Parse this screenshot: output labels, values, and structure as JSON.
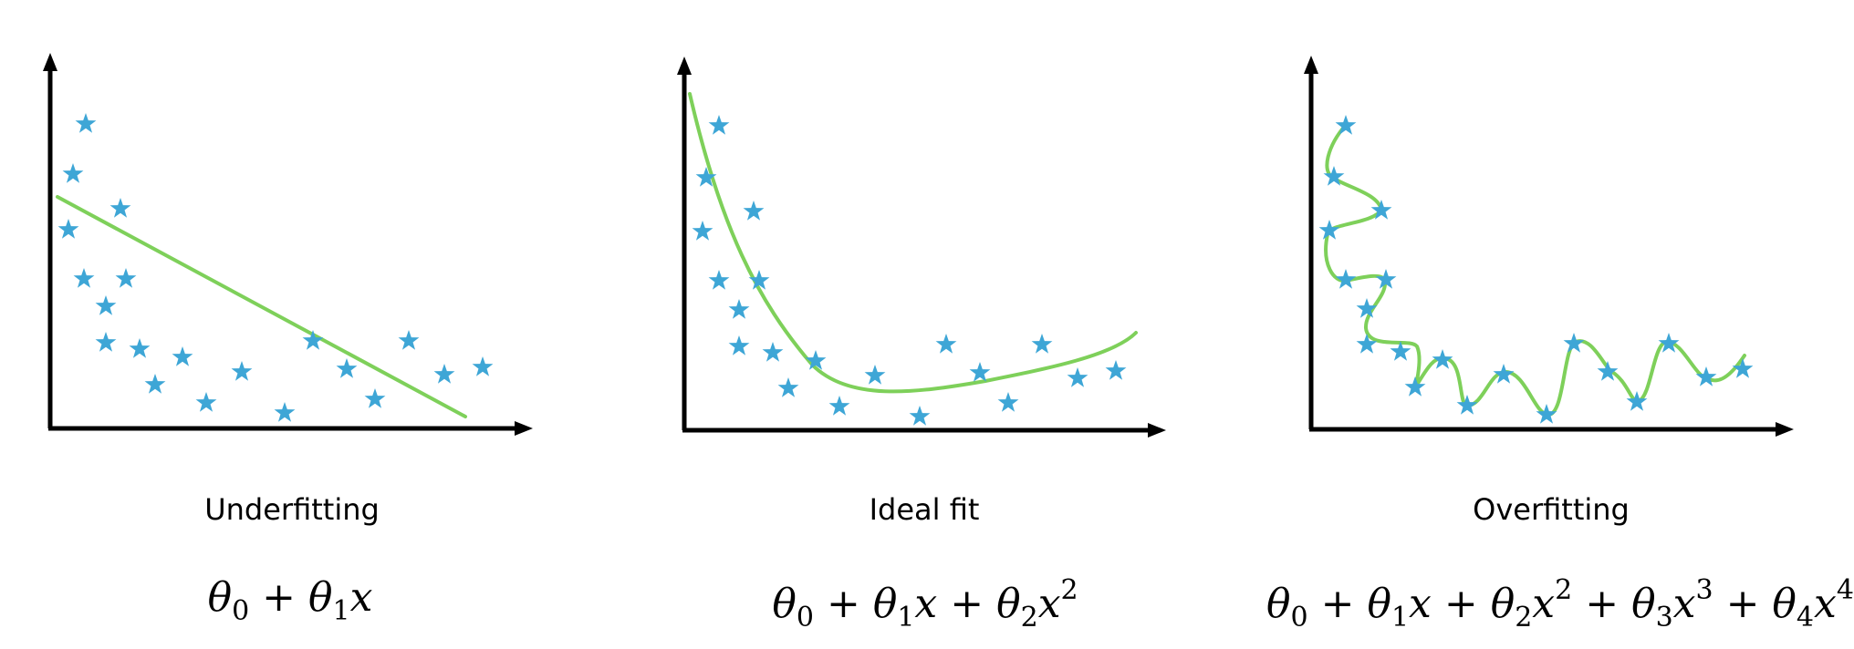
{
  "colors": {
    "axis": "#000000",
    "points": "#3ea6d6",
    "curve": "#7ed05a"
  },
  "panels": [
    {
      "label": "Underfitting",
      "model_degree": 1,
      "formula": [
        {
          "t": "θ",
          "sub": "0"
        },
        {
          "t": " + "
        },
        {
          "t": "θ",
          "sub": "1"
        },
        {
          "t": "x",
          "i": true
        }
      ]
    },
    {
      "label": "Ideal fit",
      "model_degree": 2,
      "formula": [
        {
          "t": "θ",
          "sub": "0"
        },
        {
          "t": " + "
        },
        {
          "t": "θ",
          "sub": "1"
        },
        {
          "t": "x",
          "i": true
        },
        {
          "t": " + "
        },
        {
          "t": "θ",
          "sub": "2"
        },
        {
          "t": "x",
          "i": true,
          "sup": "2"
        }
      ]
    },
    {
      "label": "Overfitting",
      "model_degree": 4,
      "formula": [
        {
          "t": "θ",
          "sub": "0"
        },
        {
          "t": " + "
        },
        {
          "t": "θ",
          "sub": "1"
        },
        {
          "t": "x",
          "i": true
        },
        {
          "t": " + "
        },
        {
          "t": "θ",
          "sub": "2"
        },
        {
          "t": "x",
          "i": true,
          "sup": "2"
        },
        {
          "t": " + "
        },
        {
          "t": "θ",
          "sub": "3"
        },
        {
          "t": "x",
          "i": true,
          "sup": "3"
        },
        {
          "t": " + "
        },
        {
          "t": "θ",
          "sub": "4"
        },
        {
          "t": "x",
          "i": true,
          "sup": "4"
        }
      ]
    }
  ]
}
